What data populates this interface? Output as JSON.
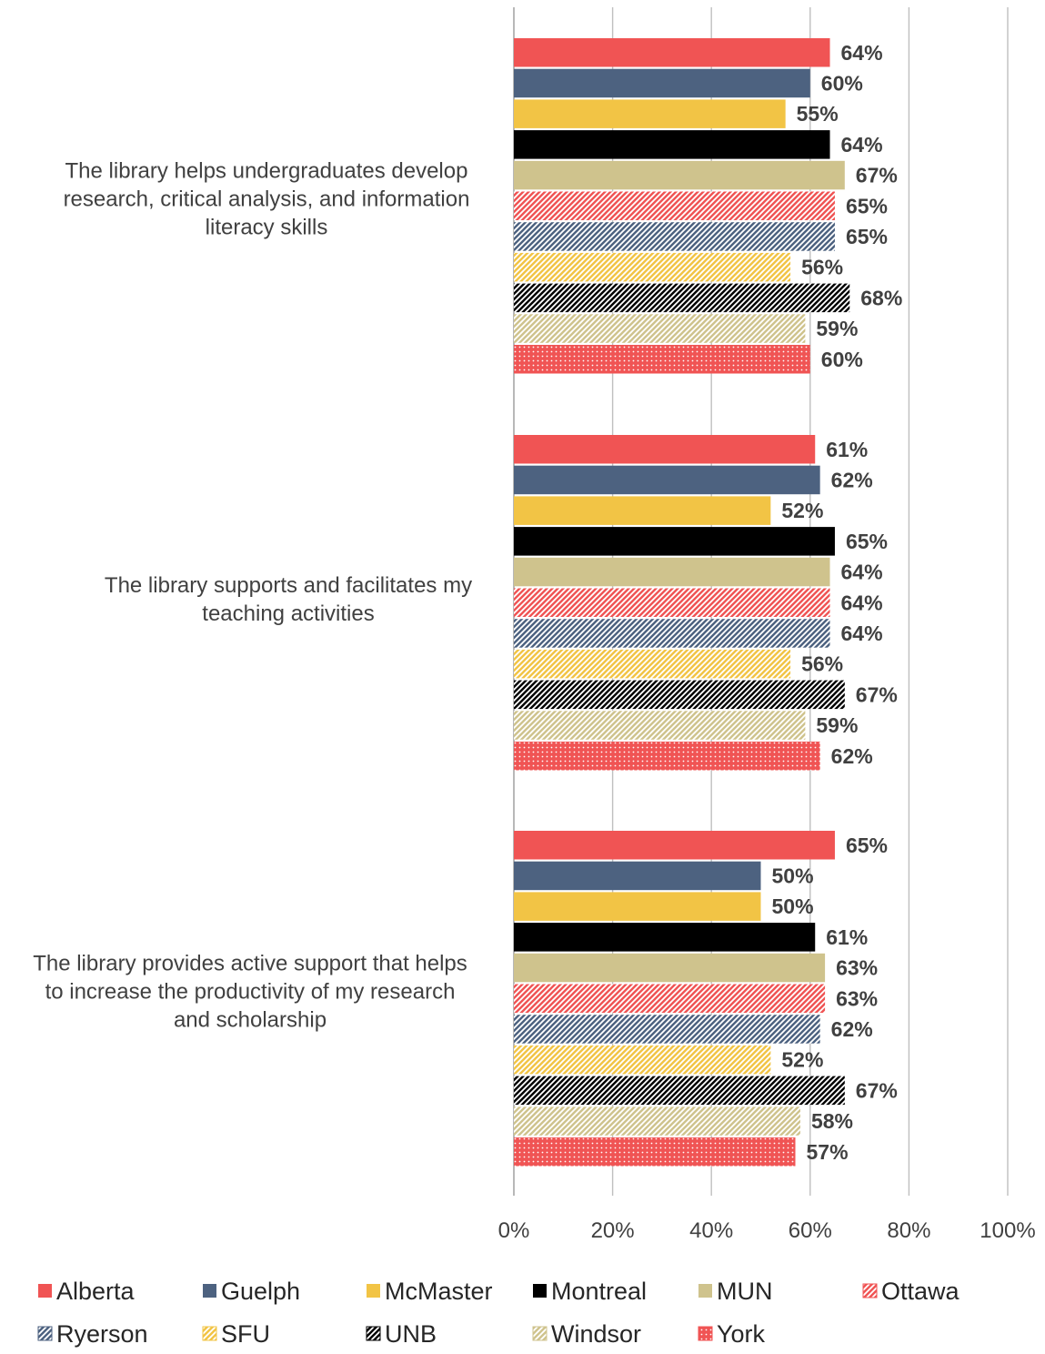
{
  "chart_data": {
    "type": "bar",
    "orientation": "horizontal",
    "categories": [
      "The library helps undergraduates develop research, critical analysis, and information literacy skills",
      "The library supports and facilitates my teaching activities",
      "The library provides active support that helps to increase the productivity of my research and scholarship"
    ],
    "category_lines": [
      [
        "The library helps undergraduates develop",
        "research, critical analysis, and information",
        "literacy skills"
      ],
      [
        "The library supports and facilitates my",
        "teaching activities"
      ],
      [
        "The library provides active support that helps",
        "to increase the productivity of my research",
        "and scholarship"
      ]
    ],
    "series": [
      {
        "name": "Alberta",
        "color": "#f05454",
        "pattern": "solid",
        "values": [
          64,
          61,
          65
        ]
      },
      {
        "name": "Guelph",
        "color": "#4d6280",
        "pattern": "solid",
        "values": [
          60,
          62,
          50
        ]
      },
      {
        "name": "McMaster",
        "color": "#f2c445",
        "pattern": "solid",
        "values": [
          55,
          52,
          50
        ]
      },
      {
        "name": "Montreal",
        "color": "#000000",
        "pattern": "solid",
        "values": [
          64,
          65,
          61
        ]
      },
      {
        "name": "MUN",
        "color": "#cfc38d",
        "pattern": "solid",
        "values": [
          67,
          64,
          63
        ]
      },
      {
        "name": "Ottawa",
        "color": "#f05454",
        "pattern": "diagonal",
        "values": [
          65,
          64,
          63
        ]
      },
      {
        "name": "Ryerson",
        "color": "#4d6280",
        "pattern": "diagonal",
        "values": [
          65,
          64,
          62
        ]
      },
      {
        "name": "SFU",
        "color": "#f2c445",
        "pattern": "diagonal",
        "values": [
          56,
          56,
          52
        ]
      },
      {
        "name": "UNB",
        "color": "#000000",
        "pattern": "diagonal",
        "values": [
          68,
          67,
          67
        ]
      },
      {
        "name": "Windsor",
        "color": "#cfc38d",
        "pattern": "diagonal",
        "values": [
          59,
          59,
          58
        ]
      },
      {
        "name": "York",
        "color": "#f05454",
        "pattern": "dotted",
        "values": [
          60,
          62,
          57
        ]
      }
    ],
    "value_suffix": "%",
    "xlim": [
      0,
      100
    ],
    "xticks": [
      0,
      20,
      40,
      60,
      80,
      100
    ],
    "xtick_labels": [
      "0%",
      "20%",
      "40%",
      "60%",
      "80%",
      "100%"
    ],
    "grid": true,
    "legend_position": "bottom",
    "title": "",
    "xlabel": "",
    "ylabel": ""
  }
}
